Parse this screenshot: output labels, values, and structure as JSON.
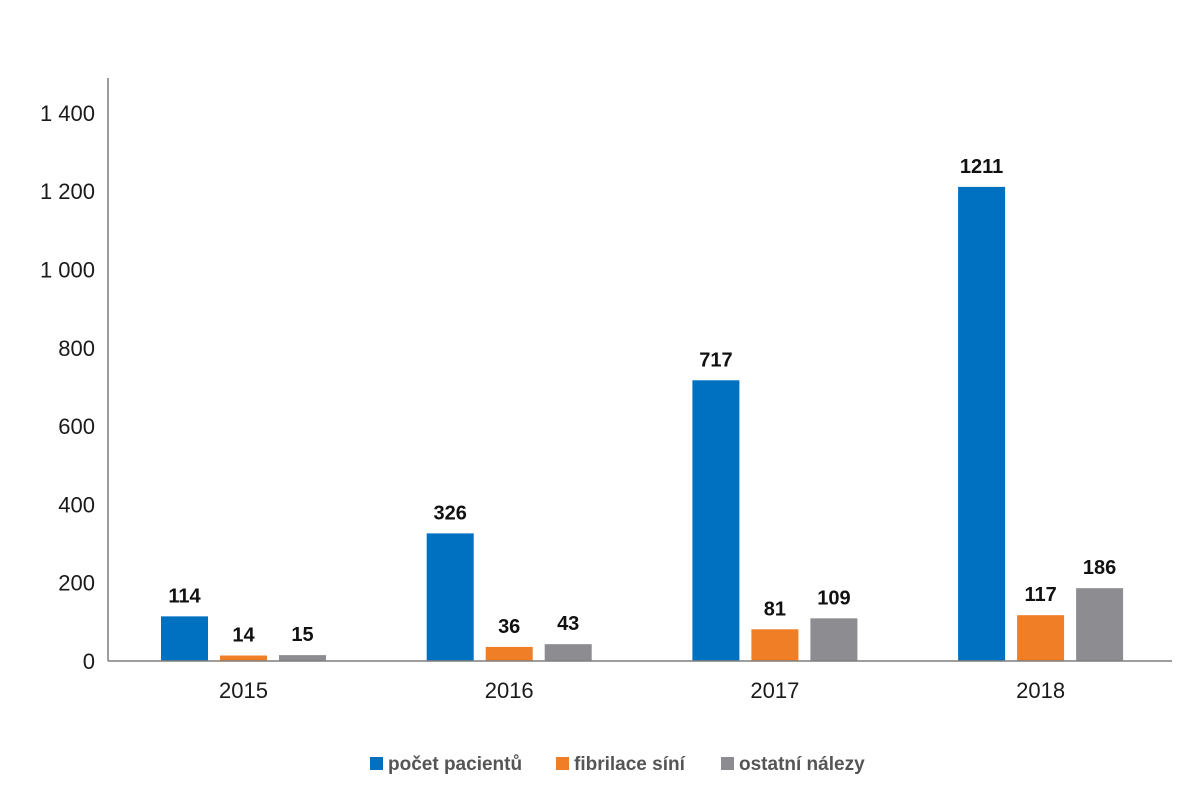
{
  "chart_data": {
    "type": "bar",
    "categories": [
      "2015",
      "2016",
      "2017",
      "2018"
    ],
    "series": [
      {
        "name": "počet pacientů",
        "values": [
          114,
          326,
          717,
          1211
        ],
        "color": "#0070c0"
      },
      {
        "name": "fibrilace síní",
        "values": [
          14,
          36,
          81,
          117
        ],
        "color": "#f07e26"
      },
      {
        "name": "ostatní nálezy",
        "values": [
          15,
          43,
          109,
          186
        ],
        "color": "#8c8c91"
      }
    ],
    "ylim": [
      0,
      1400
    ],
    "yticks": [
      0,
      200,
      400,
      600,
      800,
      1000,
      1200,
      1400
    ],
    "ytick_labels": [
      "0",
      "200",
      "400",
      "600",
      "800",
      "1 000",
      "1 200",
      "1 400"
    ],
    "data_labels": [
      [
        "114",
        "326",
        "717",
        "1211"
      ],
      [
        "14",
        "36",
        "81",
        "117"
      ],
      [
        "15",
        "43",
        "109",
        "186"
      ]
    ],
    "grid": false,
    "legend_position": "bottom-center",
    "title": "",
    "xlabel": "",
    "ylabel": ""
  }
}
